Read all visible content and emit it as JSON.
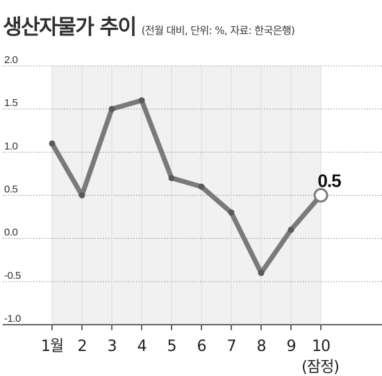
{
  "header": {
    "title": "생산자물가 추이",
    "subtitle": "(전월 대비, 단위: %, 자료: 한국은행)"
  },
  "chart_data": {
    "type": "line",
    "title": "생산자물가 추이",
    "subtitle": "(전월 대비, 단위: %, 자료: 한국은행)",
    "categories": [
      "1월",
      "2",
      "3",
      "4",
      "5",
      "6",
      "7",
      "8",
      "9",
      "10"
    ],
    "category_sublabels": [
      "",
      "",
      "",
      "",
      "",
      "",
      "",
      "",
      "",
      "(잠정)"
    ],
    "values": [
      1.1,
      0.5,
      1.5,
      1.6,
      0.7,
      0.6,
      0.3,
      -0.4,
      0.1,
      0.5
    ],
    "ylim": [
      -1.0,
      2.0
    ],
    "yticks": [
      2.0,
      1.5,
      1.0,
      0.5,
      0.0,
      -0.5,
      -1.0
    ],
    "ytick_labels": [
      "2.0",
      "1.5",
      "1.0",
      "0.5",
      "0.0",
      "-0.5",
      "-1.0"
    ],
    "grid": "horizontal-dotted",
    "callout": {
      "index": 9,
      "label": "0.5"
    },
    "colors": {
      "line": "#7a7a7a",
      "marker": "#5a5a5a",
      "fill": "#f1f1f1",
      "grid": "#888888"
    }
  }
}
